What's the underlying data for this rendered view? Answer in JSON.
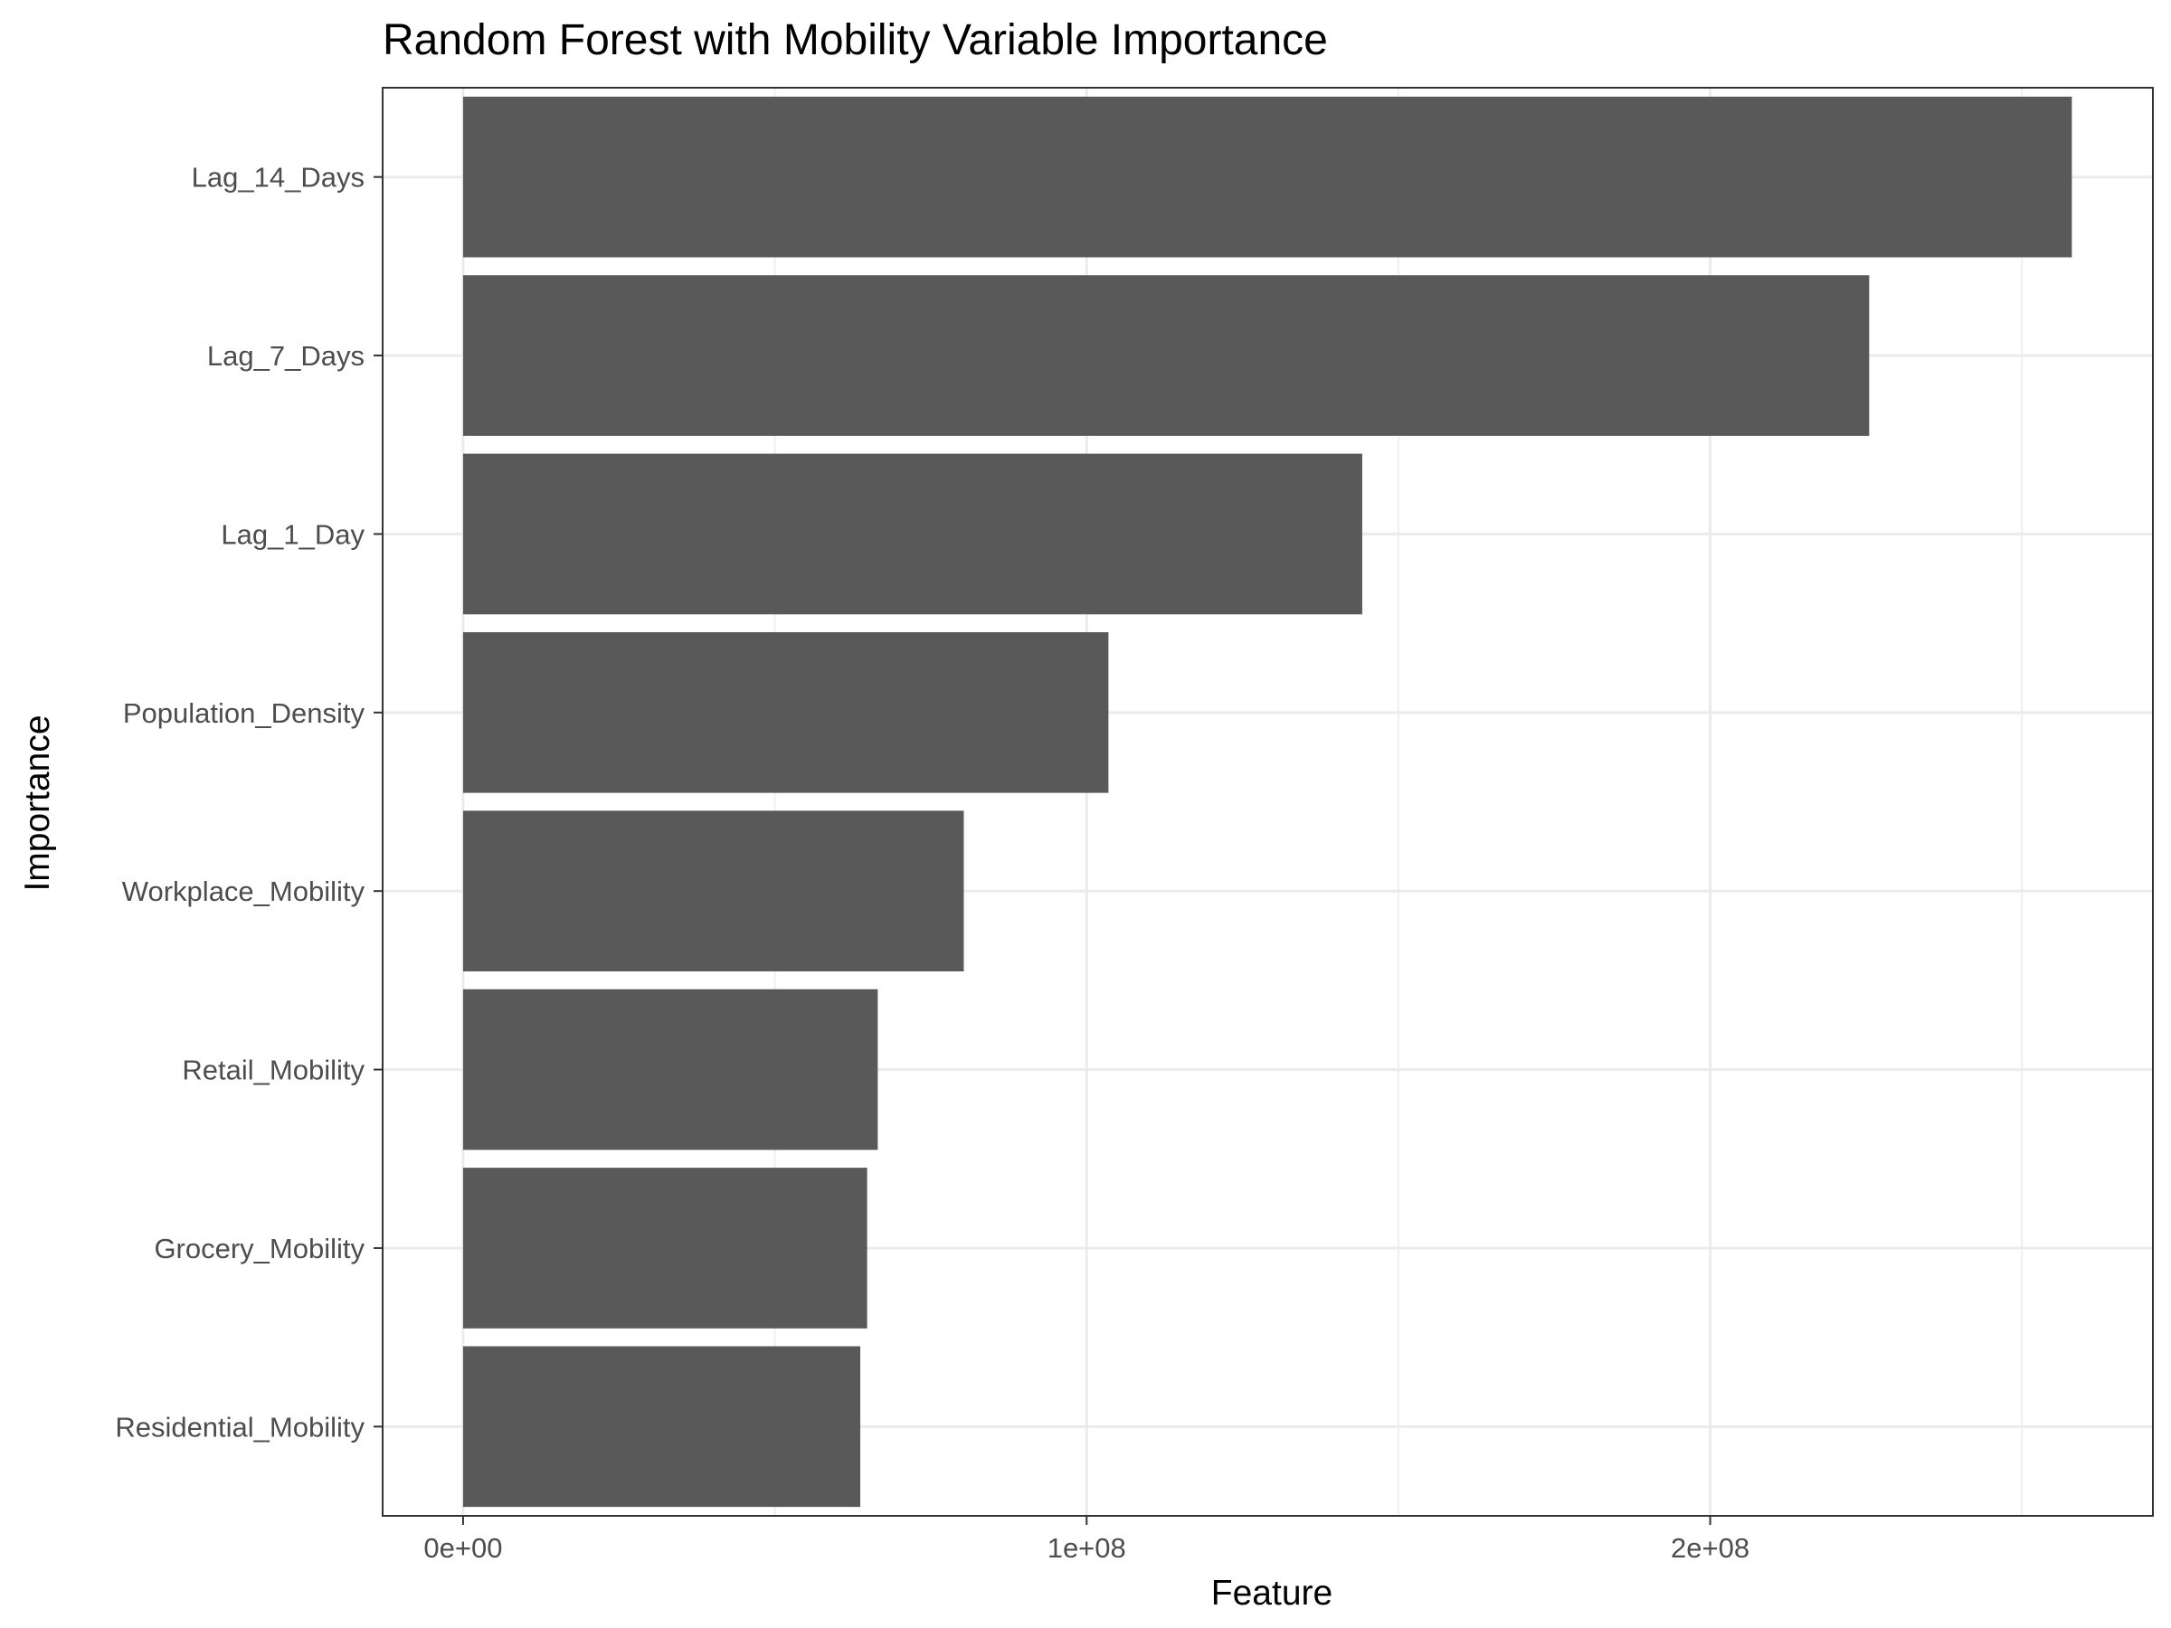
{
  "chart_data": {
    "type": "bar",
    "orientation": "horizontal",
    "title": "Random Forest with Mobility Variable Importance",
    "xlabel": "Feature",
    "ylabel": "Importance",
    "categories": [
      "Lag_14_Days",
      "Lag_7_Days",
      "Lag_1_Day",
      "Population_Density",
      "Workplace_Mobility",
      "Retail_Mobility",
      "Grocery_Mobility",
      "Residential_Mobility"
    ],
    "values": [
      258000000,
      225500000,
      144200000,
      103500000,
      80300000,
      66500000,
      64800000,
      63700000
    ],
    "xticks": [
      0,
      100000000,
      200000000
    ],
    "xtick_labels": [
      "0e+00",
      "1e+08",
      "2e+08"
    ],
    "xlim": [
      -12900000,
      271000000
    ],
    "grid": true,
    "colors": {
      "bar": "#595959",
      "grid": "#ebebeb",
      "panel_border": "#333333"
    }
  }
}
